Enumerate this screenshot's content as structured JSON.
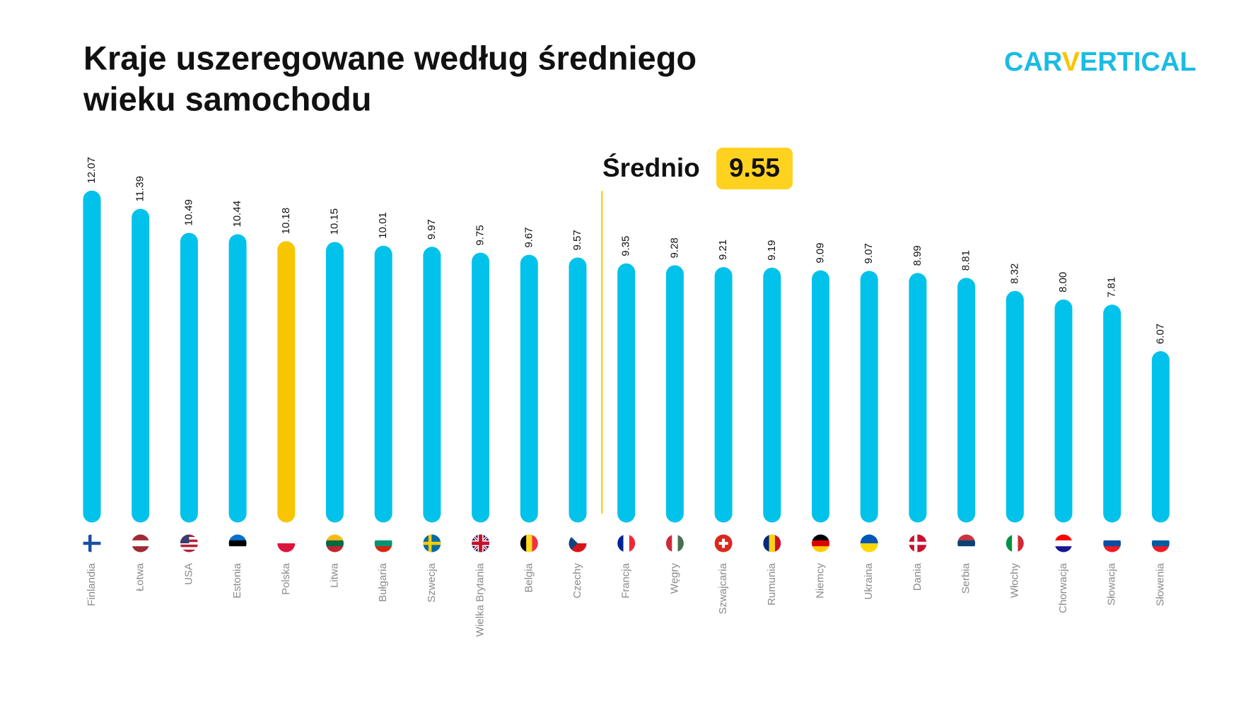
{
  "chart_data": {
    "type": "bar",
    "title": [
      "Kraje uszeregowane według średniego",
      "wieku samochodu"
    ],
    "logo": [
      "CAR",
      "V",
      "ERTICAL"
    ],
    "categories": [
      "Finlandia",
      "Łotwa",
      "USA",
      "Estonia",
      "Polska",
      "Litwa",
      "Bułgaria",
      "Szwecja",
      "Wielka Brytania",
      "Belgia",
      "Czechy",
      "Francja",
      "Węgry",
      "Szwajcaria",
      "Rumunia",
      "Niemcy",
      "Ukraina",
      "Dania",
      "Serbia",
      "Włochy",
      "Chorwacja",
      "Słowacja",
      "Słowenia"
    ],
    "values": [
      12.07,
      11.39,
      10.49,
      10.44,
      10.18,
      10.15,
      10.01,
      9.97,
      9.75,
      9.67,
      9.57,
      9.35,
      9.28,
      9.21,
      9.19,
      9.09,
      9.07,
      8.99,
      8.81,
      8.32,
      8.0,
      7.81,
      6.07
    ],
    "value_labels": [
      "12.07",
      "11.39",
      "10.49",
      "10.44",
      "10.18",
      "10.15",
      "10.01",
      "9.97",
      "9.75",
      "9.67",
      "9.57",
      "9.35",
      "9.28",
      "9.21",
      "9.19",
      "9.09",
      "9.07",
      "8.99",
      "8.81",
      "8.32",
      "8.00",
      "7.81",
      "6.07"
    ],
    "colors": [
      "#00c2ea",
      "#00c2ea",
      "#00c2ea",
      "#00c2ea",
      "#f7c600",
      "#00c2ea",
      "#00c2ea",
      "#00c2ea",
      "#00c2ea",
      "#00c2ea",
      "#00c2ea",
      "#00c2ea",
      "#00c2ea",
      "#00c2ea",
      "#00c2ea",
      "#00c2ea",
      "#00c2ea",
      "#00c2ea",
      "#00c2ea",
      "#00c2ea",
      "#00c2ea",
      "#00c2ea",
      "#00c2ea"
    ],
    "average": {
      "label": "Średnio",
      "value": 9.55,
      "color": "#f7c600"
    },
    "ylim": [
      0,
      13.7
    ]
  }
}
